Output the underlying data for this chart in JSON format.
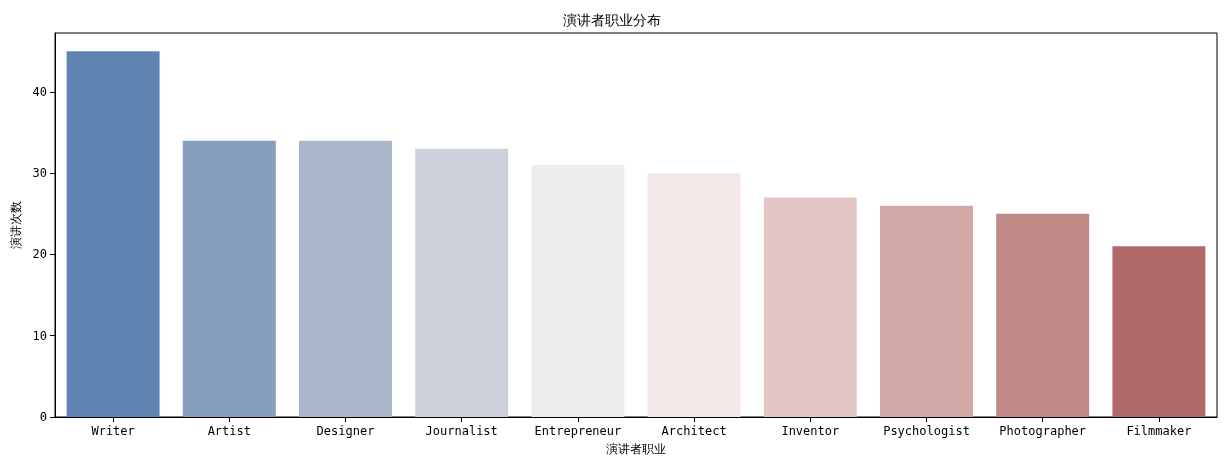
{
  "chart_data": {
    "type": "bar",
    "title": "演讲者职业分布",
    "xlabel": "演讲者职业",
    "ylabel": "演讲次数",
    "categories": [
      "Writer",
      "Artist",
      "Designer",
      "Journalist",
      "Entrepreneur",
      "Architect",
      "Inventor",
      "Psychologist",
      "Photographer",
      "Filmmaker"
    ],
    "values": [
      45,
      34,
      34,
      33,
      31,
      30,
      27,
      26,
      25,
      21
    ],
    "colors": [
      "#6084b2",
      "#879fbe",
      "#a9b6ca",
      "#cdd1dc",
      "#eeedf0",
      "#f4e7e7",
      "#e3c6c6",
      "#d1a8a6",
      "#c08886",
      "#ae6867"
    ],
    "ylim": [
      0,
      47.25
    ],
    "yticks": [
      0,
      10,
      20,
      30,
      40
    ],
    "grid": false
  }
}
